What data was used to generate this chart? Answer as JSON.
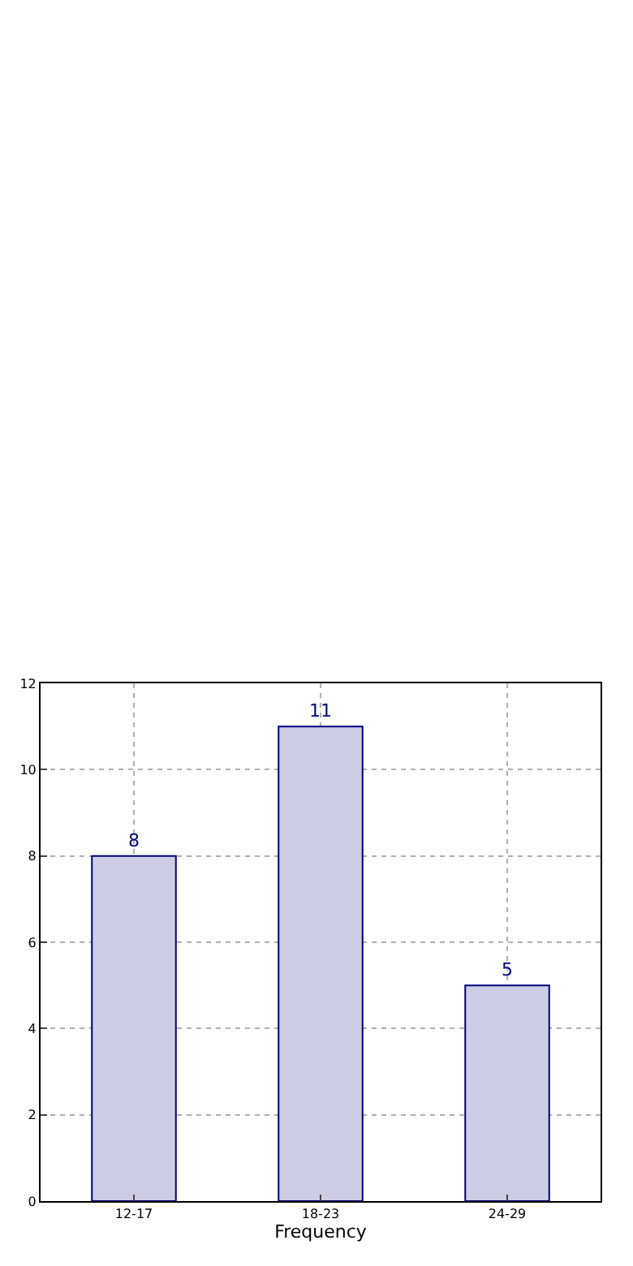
{
  "chart_data": {
    "type": "bar",
    "xlabel": "Frequency",
    "categories": [
      "12-17",
      "18-23",
      "24-29"
    ],
    "values": [
      8,
      11,
      5
    ],
    "color": "#ccccE4",
    "ylim": [
      0,
      12
    ],
    "yticks": [
      0,
      2,
      4,
      6,
      8,
      10,
      12
    ],
    "grid": true,
    "data_labels": true
  }
}
